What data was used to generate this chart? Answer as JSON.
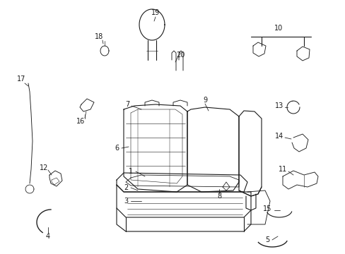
{
  "bg_color": "#ffffff",
  "fig_width": 4.89,
  "fig_height": 3.6,
  "dpi": 100,
  "line_color": "#1a1a1a",
  "text_color": "#1a1a1a",
  "font_size": 7.0,
  "label_font_size": 7.0
}
